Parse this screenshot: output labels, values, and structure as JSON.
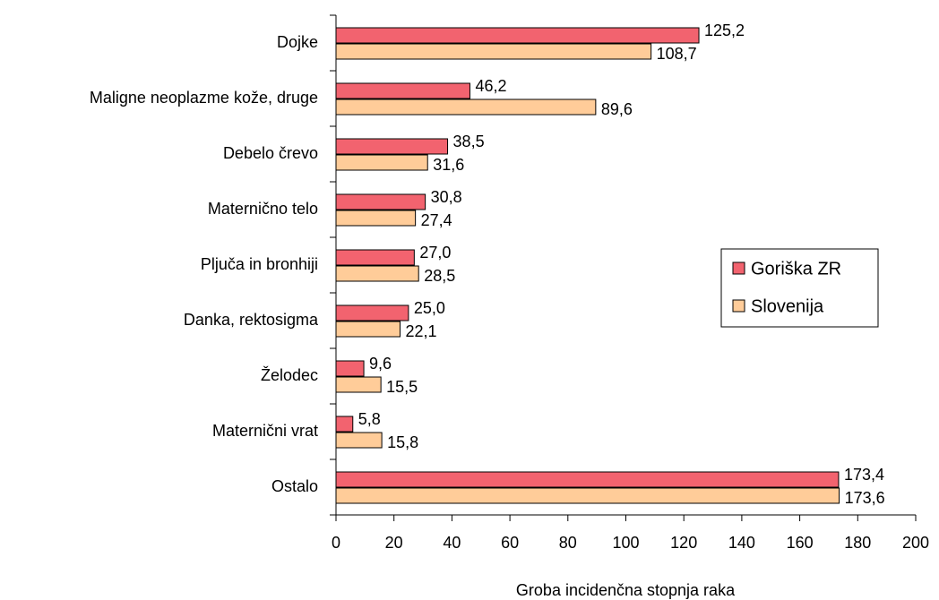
{
  "chart_data": {
    "type": "barh",
    "categories": [
      "Dojke",
      "Maligne neoplazme kože, druge",
      "Debelo črevo",
      "Maternično telo",
      "Pljuča in bronhiji",
      "Danka, rektosigma",
      "Želodec",
      "Materničnі vrat",
      "Ostalo"
    ],
    "series": [
      {
        "name": "Goriška ZR",
        "color": "#f2636f",
        "values": [
          125.2,
          46.2,
          38.5,
          30.8,
          27.0,
          25.0,
          9.6,
          5.8,
          173.4
        ],
        "value_labels": [
          "125,2",
          "46,2",
          "38,5",
          "30,8",
          "27,0",
          "25,0",
          "9,6",
          "5,8",
          "173,4"
        ]
      },
      {
        "name": "Slovenija",
        "color": "#ffcc99",
        "values": [
          108.7,
          89.6,
          31.6,
          27.4,
          28.5,
          22.1,
          15.5,
          15.8,
          173.6
        ],
        "value_labels": [
          "108,7",
          "89,6",
          "31,6",
          "27,4",
          "28,5",
          "22,1",
          "15,5",
          "15,8",
          "173,6"
        ]
      }
    ],
    "xlabel": "Groba incidenčna stopnja raka",
    "xlim": [
      0,
      200
    ],
    "xticks": [
      0,
      20,
      40,
      60,
      80,
      100,
      120,
      140,
      160,
      180,
      200
    ],
    "legend": "right",
    "grid": false
  }
}
